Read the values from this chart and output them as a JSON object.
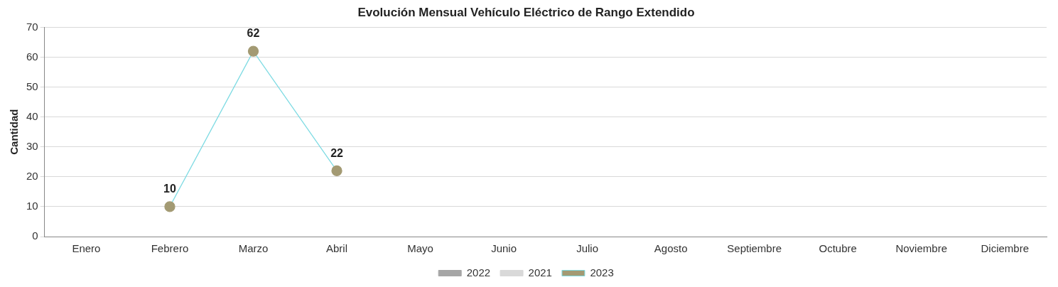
{
  "chart_data": {
    "type": "line",
    "title": "Evolución Mensual Vehículo Eléctrico de Rango Extendido",
    "ylabel": "Cantidad",
    "categories": [
      "Enero",
      "Febrero",
      "Marzo",
      "Abril",
      "Mayo",
      "Junio",
      "Julio",
      "Agosto",
      "Septiembre",
      "Octubre",
      "Noviembre",
      "Diciembre"
    ],
    "series": [
      {
        "name": "2022",
        "type": "bar",
        "color": "#a6a6a6",
        "values": [
          null,
          null,
          null,
          null,
          null,
          null,
          null,
          null,
          null,
          null,
          null,
          null
        ]
      },
      {
        "name": "2021",
        "type": "bar",
        "color": "#d9d9d9",
        "values": [
          null,
          null,
          null,
          null,
          null,
          null,
          null,
          null,
          null,
          null,
          null,
          null
        ]
      },
      {
        "name": "2023",
        "color": "#7fdbe3",
        "colors": [
          "#a39a73",
          "#a39a73",
          "#a39a73",
          "#a39a73",
          "#a39a73",
          "#a39a73",
          "#a39a73",
          "#a39a73",
          "#a39a73",
          "#a39a73",
          "#a39a73",
          "#a39a73"
        ],
        "values": [
          null,
          10,
          62,
          22,
          null,
          null,
          null,
          null,
          null,
          null,
          null,
          null
        ]
      }
    ],
    "ylim": [
      0,
      70
    ],
    "yticks": [
      0,
      10,
      20,
      30,
      40,
      50,
      60,
      70
    ],
    "grid": "y",
    "legend": "bottom",
    "marker": "circle",
    "line_style": "solid",
    "data_labels": true
  }
}
